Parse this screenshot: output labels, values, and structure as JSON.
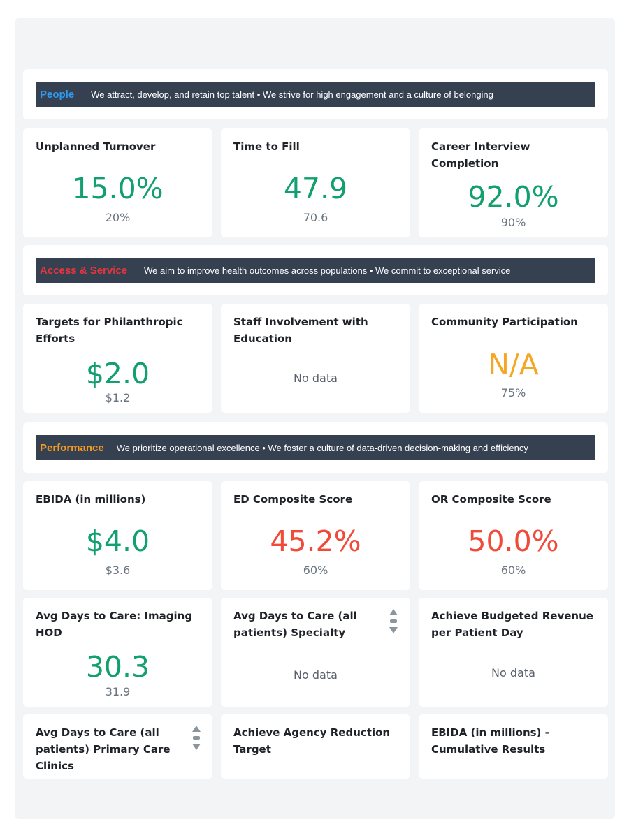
{
  "colors": {
    "people": "#2f9bf0",
    "access": "#e8343c",
    "performance": "#f59a23",
    "good": "#11a06e",
    "bad": "#f04b3a",
    "na": "#f5a623",
    "banner_bg": "#354151"
  },
  "sections": {
    "people": {
      "title": "People",
      "desc": "We attract, develop, and retain top talent • We strive for high engagement and a culture of belonging"
    },
    "access": {
      "title": "Access & Service",
      "desc": "We aim to improve health outcomes across populations • We commit to exceptional service"
    },
    "performance": {
      "title": "Performance",
      "desc": "We prioritize operational excellence • We foster a culture of data-driven decision-making and efficiency"
    }
  },
  "cards": {
    "unplanned_turnover": {
      "title": "Unplanned Turnover",
      "value": "15.0%",
      "target": "20%"
    },
    "time_to_fill": {
      "title": "Time to Fill",
      "value": "47.9",
      "target": "70.6"
    },
    "career_interview": {
      "title": "Career Interview Completion",
      "value": "92.0%",
      "target": "90%"
    },
    "philanthropic": {
      "title": "Targets for Philanthropic Efforts",
      "value": "$2.0",
      "target": "$1.2"
    },
    "staff_involvement": {
      "title": "Staff Involvement with Education",
      "nodata": "No data"
    },
    "community": {
      "title": "Community Participation",
      "value": "N/A",
      "target": "75%"
    },
    "ebida": {
      "title": "EBIDA (in millions)",
      "value": "$4.0",
      "target": "$3.6"
    },
    "ed_composite": {
      "title": "ED Composite Score",
      "value": "45.2%",
      "target": "60%"
    },
    "or_composite": {
      "title": "OR Composite Score",
      "value": "50.0%",
      "target": "60%"
    },
    "imaging": {
      "title": "Avg Days to Care: Imaging HOD",
      "value": "30.3",
      "target": "31.9"
    },
    "specialty": {
      "title": "Avg Days to Care (all patients) Specialty Care Clinics",
      "nodata": "No data"
    },
    "budget_revenue": {
      "title": "Achieve Budgeted Revenue per Patient Day",
      "nodata": "No data"
    },
    "primary_care": {
      "title": "Avg Days to Care (all patients) Primary Care Clinics"
    },
    "agency_reduction": {
      "title": "Achieve Agency Reduction Target"
    },
    "ebida_cumulative": {
      "title": "EBIDA (in millions) - Cumulative Results"
    }
  }
}
